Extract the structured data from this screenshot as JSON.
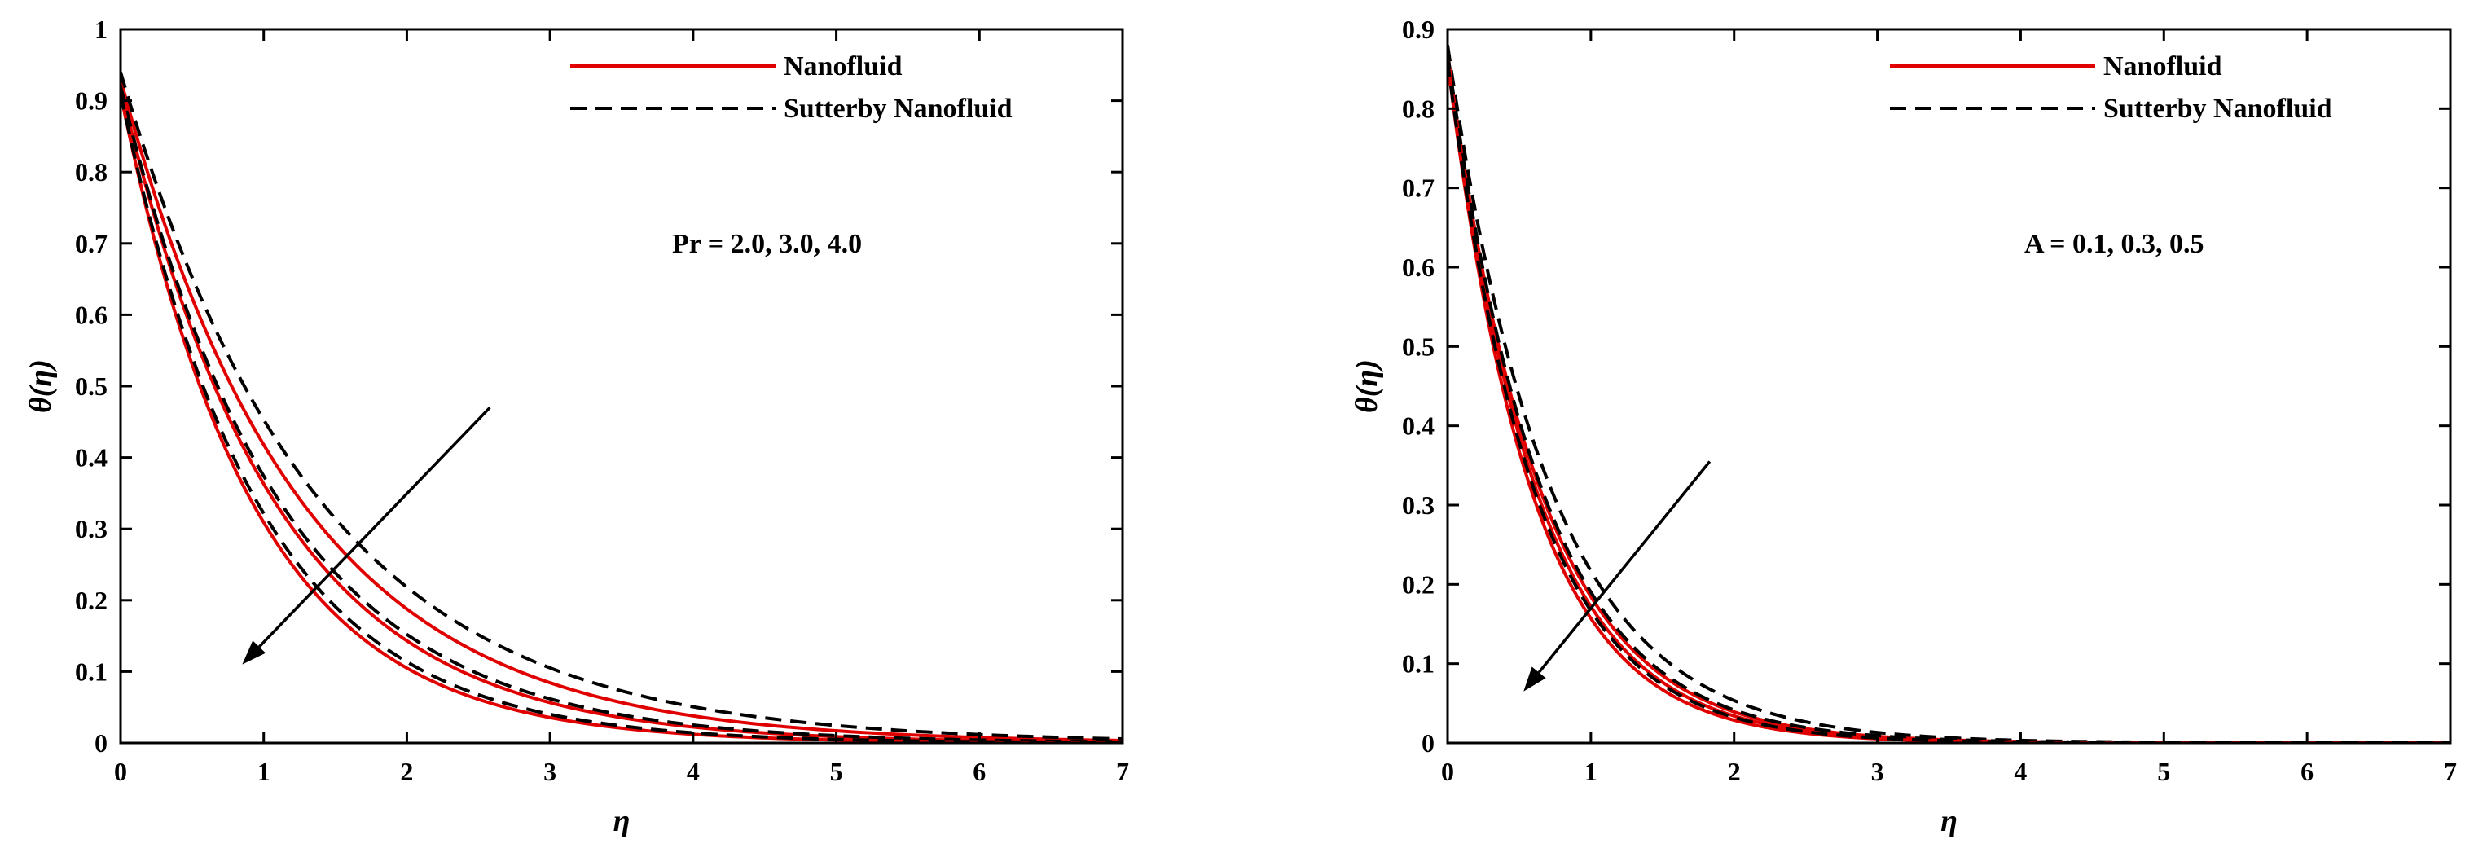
{
  "chart_data": [
    {
      "type": "line",
      "xlabel": "η",
      "ylabel": "θ(η)",
      "xlim": [
        0,
        7
      ],
      "ylim": [
        0,
        1
      ],
      "xticks": [
        "0",
        "1",
        "2",
        "3",
        "4",
        "5",
        "6",
        "7"
      ],
      "yticks": [
        "0",
        "0.1",
        "0.2",
        "0.3",
        "0.4",
        "0.5",
        "0.6",
        "0.7",
        "0.8",
        "0.9",
        "1"
      ],
      "legend": [
        "Nanofluid",
        "Sutterby Nanofluid"
      ],
      "annotation": "Pr = 2.0, 3.0, 4.0",
      "arrow": {
        "from": [
          2.58,
          0.47
        ],
        "to": [
          0.85,
          0.11
        ]
      },
      "colors": {
        "nanofluid": "#e00000",
        "sutterby": "#000000"
      },
      "series": [
        {
          "name": "Nanofluid",
          "param": "Pr = 2.0",
          "style": "solid",
          "theta0": 0.93,
          "decay": 0.8
        },
        {
          "name": "Sutterby Nanofluid",
          "param": "Pr = 2.0",
          "style": "dashed",
          "theta0": 0.94,
          "decay": 0.73
        },
        {
          "name": "Nanofluid",
          "param": "Pr = 3.0",
          "style": "solid",
          "theta0": 0.92,
          "decay": 0.93
        },
        {
          "name": "Sutterby Nanofluid",
          "param": "Pr = 3.0",
          "style": "dashed",
          "theta0": 0.92,
          "decay": 0.9
        },
        {
          "name": "Nanofluid",
          "param": "Pr = 4.0",
          "style": "solid",
          "theta0": 0.91,
          "decay": 1.08
        },
        {
          "name": "Sutterby Nanofluid",
          "param": "Pr = 4.0",
          "style": "dashed",
          "theta0": 0.91,
          "decay": 1.04
        }
      ]
    },
    {
      "type": "line",
      "xlabel": "η",
      "ylabel": "θ(η)",
      "xlim": [
        0,
        7
      ],
      "ylim": [
        0,
        0.9
      ],
      "xticks": [
        "0",
        "1",
        "2",
        "3",
        "4",
        "5",
        "6",
        "7"
      ],
      "yticks": [
        "0",
        "0.1",
        "0.2",
        "0.3",
        "0.4",
        "0.5",
        "0.6",
        "0.7",
        "0.8",
        "0.9"
      ],
      "legend": [
        "Nanofluid",
        "Sutterby Nanofluid"
      ],
      "annotation": "A = 0.1, 0.3, 0.5",
      "arrow": {
        "from": [
          1.83,
          0.355
        ],
        "to": [
          0.53,
          0.065
        ]
      },
      "colors": {
        "nanofluid": "#e00000",
        "sutterby": "#000000"
      },
      "series": [
        {
          "name": "Nanofluid",
          "param": "A = 0.1",
          "style": "solid",
          "theta0": 0.87,
          "decay": 1.55
        },
        {
          "name": "Sutterby Nanofluid",
          "param": "A = 0.1",
          "style": "dashed",
          "theta0": 0.88,
          "decay": 1.4
        },
        {
          "name": "Nanofluid",
          "param": "A = 0.3",
          "style": "solid",
          "theta0": 0.87,
          "decay": 1.62
        },
        {
          "name": "Sutterby Nanofluid",
          "param": "A = 0.3",
          "style": "dashed",
          "theta0": 0.87,
          "decay": 1.52
        },
        {
          "name": "Nanofluid",
          "param": "A = 0.5",
          "style": "solid",
          "theta0": 0.86,
          "decay": 1.7
        },
        {
          "name": "Sutterby Nanofluid",
          "param": "A = 0.5",
          "style": "dashed",
          "theta0": 0.86,
          "decay": 1.64
        }
      ]
    }
  ]
}
